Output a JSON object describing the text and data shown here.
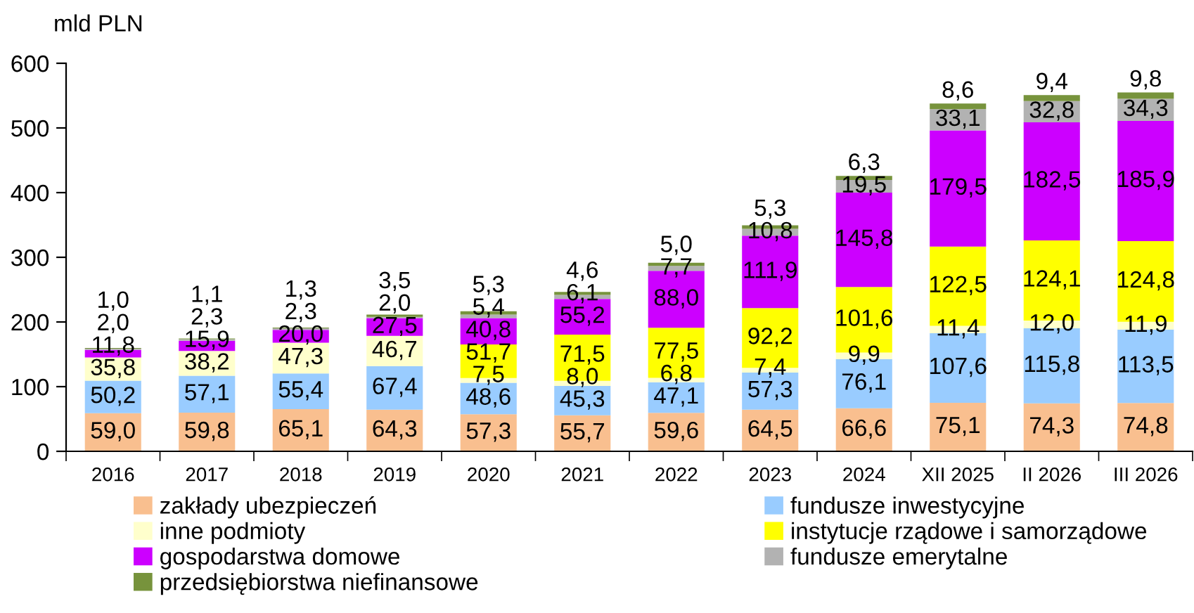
{
  "chart_data": {
    "type": "bar",
    "stacked": true,
    "ylabel": "mld PLN",
    "categories": [
      "2016",
      "2017",
      "2018",
      "2019",
      "2020",
      "2021",
      "2022",
      "2023",
      "2024",
      "XII 2025",
      "II 2026",
      "III 2026"
    ],
    "series": [
      {
        "name": "zakłady ubezpieczeń",
        "color": "#f9bf8f",
        "values": [
          59.0,
          59.8,
          65.1,
          64.3,
          57.3,
          55.7,
          59.6,
          64.5,
          66.6,
          75.1,
          74.3,
          74.8
        ],
        "value_labels": [
          "59,0",
          "59,8",
          "65,1",
          "64,3",
          "57,3",
          "55,7",
          "59,6",
          "64,5",
          "66,6",
          "75,1",
          "74,3",
          "74,8"
        ]
      },
      {
        "name": "fundusze inwestycyjne",
        "color": "#99ccff",
        "values": [
          50.2,
          57.1,
          55.4,
          67.4,
          48.6,
          45.3,
          47.1,
          57.3,
          76.1,
          107.6,
          115.8,
          113.5
        ],
        "value_labels": [
          "50,2",
          "57,1",
          "55,4",
          "67,4",
          "48,6",
          "45,3",
          "47,1",
          "57,3",
          "76,1",
          "107,6",
          "115,8",
          "113,5"
        ]
      },
      {
        "name": "inne podmioty",
        "color": "#ffffcc",
        "values": [
          35.8,
          38.2,
          47.3,
          46.7,
          7.5,
          8.0,
          6.8,
          7.4,
          9.9,
          11.4,
          12.0,
          11.9
        ],
        "value_labels": [
          "35,8",
          "38,2",
          "47,3",
          "46,7",
          "7,5",
          "8,0",
          "6,8",
          "7,4",
          "9,9",
          "11,4",
          "12,0",
          "11,9"
        ]
      },
      {
        "name": "instytucje rządowe i samorządowe",
        "color": "#ffff00",
        "values": [
          null,
          null,
          null,
          null,
          51.7,
          71.5,
          77.5,
          92.2,
          101.6,
          122.5,
          124.1,
          124.8
        ],
        "value_labels": [
          null,
          null,
          null,
          null,
          "51,7",
          "71,5",
          "77,5",
          "92,2",
          "101,6",
          "122,5",
          "124,1",
          "124,8"
        ]
      },
      {
        "name": "gospodarstwa domowe",
        "color": "#cc00ff",
        "values": [
          11.8,
          15.9,
          20.0,
          27.5,
          40.8,
          55.2,
          88.0,
          111.9,
          145.8,
          179.5,
          182.5,
          185.9
        ],
        "value_labels": [
          "11,8",
          "15,9",
          "20,0",
          "27,5",
          "40,8",
          "55,2",
          "88,0",
          "111,9",
          "145,8",
          "179,5",
          "182,5",
          "185,9"
        ]
      },
      {
        "name": "fundusze emerytalne",
        "color": "#b2b2b2",
        "values": [
          2.0,
          2.3,
          2.3,
          2.0,
          5.4,
          6.1,
          7.7,
          10.8,
          19.5,
          33.1,
          32.8,
          34.3
        ],
        "value_labels": [
          "2,0",
          "2,3",
          "2,3",
          "2,0",
          "5,4",
          "6,1",
          "7,7",
          "10,8",
          "19,5",
          "33,1",
          "32,8",
          "34,3"
        ]
      },
      {
        "name": "przedsiębiorstwa niefinansowe",
        "color": "#77933c",
        "values": [
          1.0,
          1.1,
          1.3,
          3.5,
          5.3,
          4.6,
          5.0,
          5.3,
          6.3,
          8.6,
          9.4,
          9.8
        ],
        "value_labels": [
          "1,0",
          "1,1",
          "1,3",
          "3,5",
          "5,3",
          "4,6",
          "5,0",
          "5,3",
          "6,3",
          "8,6",
          "9,4",
          "9,8"
        ]
      }
    ],
    "ylim": [
      0,
      600
    ],
    "yticks": [
      0,
      100,
      200,
      300,
      400,
      500,
      600
    ],
    "legend": "bottom"
  }
}
